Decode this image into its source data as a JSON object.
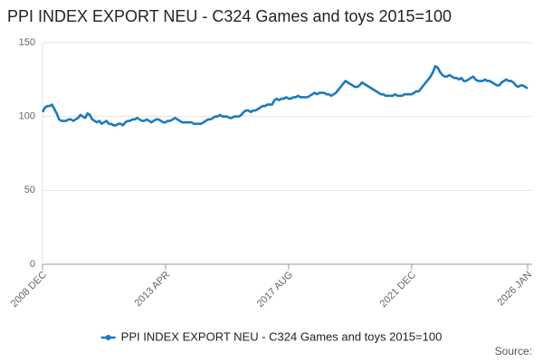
{
  "chart_data": {
    "type": "line",
    "title": "PPI INDEX EXPORT NEU - C324 Games and toys 2015=100",
    "source": "Source:",
    "categories": [
      "2008 DEC",
      null,
      null,
      null,
      null,
      null,
      null,
      null,
      null,
      null,
      null,
      null,
      null,
      null,
      null,
      null,
      null,
      null,
      null,
      null,
      null,
      null,
      null,
      null,
      null,
      null,
      null,
      null,
      null,
      null,
      null,
      null,
      null,
      null,
      null,
      null,
      null,
      null,
      null,
      null,
      null,
      null,
      null,
      null,
      null,
      null,
      null,
      null,
      null,
      null,
      null,
      null,
      "2013 APR",
      null,
      null,
      null,
      null,
      null,
      null,
      null,
      null,
      null,
      null,
      null,
      null,
      null,
      null,
      null,
      null,
      null,
      null,
      null,
      null,
      null,
      null,
      null,
      null,
      null,
      null,
      null,
      null,
      null,
      null,
      null,
      null,
      null,
      null,
      null,
      null,
      null,
      null,
      null,
      null,
      null,
      null,
      null,
      null,
      null,
      null,
      null,
      null,
      null,
      null,
      null,
      "2017 AUG",
      null,
      null,
      null,
      null,
      null,
      null,
      null,
      null,
      null,
      null,
      null,
      null,
      null,
      null,
      null,
      null,
      null,
      null,
      null,
      null,
      null,
      null,
      null,
      null,
      null,
      null,
      null,
      null,
      null,
      null,
      null,
      null,
      null,
      null,
      null,
      null,
      null,
      null,
      null,
      null,
      null,
      null,
      null,
      null,
      null,
      null,
      null,
      null,
      null,
      null,
      null,
      "2021 DEC",
      null,
      null,
      null,
      null,
      null,
      null,
      null,
      null,
      null,
      null,
      null,
      null,
      null,
      null,
      null,
      null,
      null,
      null,
      null,
      null,
      null,
      null,
      null,
      null,
      null,
      null,
      null,
      null,
      null,
      null,
      null,
      null,
      null,
      null,
      null,
      null,
      null,
      null,
      null,
      null,
      null,
      null,
      null,
      null,
      null,
      null,
      null,
      null,
      "2026 JAN"
    ],
    "series": [
      {
        "name": "PPI INDEX EXPORT NEU - C324 Games and toys 2015=100",
        "color": "#1a7abf",
        "values": [
          103,
          106,
          107,
          107,
          108,
          105,
          102,
          98,
          97,
          97,
          97,
          98,
          98,
          97,
          98,
          99,
          101,
          100,
          99,
          102,
          101,
          98,
          97,
          96,
          97,
          95,
          96,
          97,
          95,
          95,
          94,
          94,
          95,
          95,
          94,
          96,
          97,
          97,
          98,
          98,
          99,
          98,
          97,
          97,
          98,
          97,
          96,
          97,
          98,
          98,
          97,
          96,
          96,
          97,
          97,
          98,
          99,
          98,
          97,
          96,
          96,
          96,
          96,
          96,
          95,
          95,
          95,
          95,
          96,
          97,
          98,
          98,
          99,
          100,
          100,
          101,
          100,
          100,
          100,
          99,
          99,
          100,
          100,
          100,
          101,
          103,
          104,
          104,
          103,
          104,
          104,
          105,
          106,
          107,
          107,
          108,
          108,
          108,
          111,
          112,
          111,
          112,
          112,
          113,
          112,
          112,
          113,
          113,
          114,
          113,
          113,
          113,
          113,
          114,
          115,
          116,
          115,
          116,
          116,
          116,
          115,
          115,
          114,
          115,
          116,
          118,
          120,
          122,
          124,
          123,
          122,
          121,
          120,
          120,
          121,
          123,
          122,
          121,
          120,
          119,
          118,
          117,
          116,
          115,
          115,
          114,
          114,
          114,
          114,
          115,
          114,
          114,
          114,
          115,
          115,
          115,
          115,
          116,
          117,
          117,
          119,
          121,
          123,
          125,
          127,
          130,
          134,
          133,
          130,
          128,
          127,
          127,
          128,
          127,
          126,
          126,
          125,
          126,
          124,
          124,
          125,
          126,
          127,
          125,
          124,
          124,
          124,
          125,
          124,
          124,
          123,
          122,
          121,
          121,
          123,
          124,
          125,
          124,
          124,
          123,
          121,
          120,
          121,
          121,
          120,
          119
        ]
      }
    ],
    "ylim": [
      0,
      150
    ],
    "yticks": [
      0,
      50,
      100,
      150
    ],
    "grid": true,
    "legend": "bottom"
  }
}
